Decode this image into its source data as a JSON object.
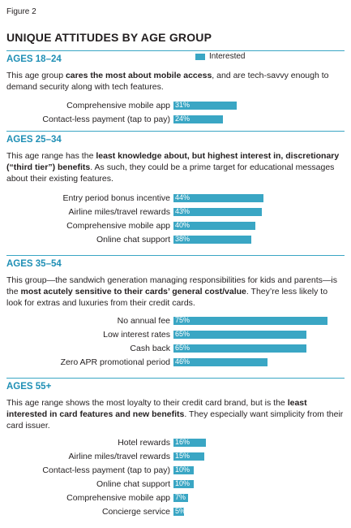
{
  "figure_label": "Figure 2",
  "title": "UNIQUE ATTITUDES BY AGE GROUP",
  "legend": {
    "label": "Interested",
    "color": "#3aa6c4"
  },
  "colors": {
    "accent": "#3aa6c4",
    "header": "#1f8fb5"
  },
  "sections": [
    {
      "header": "AGES 18–24",
      "description": [
        {
          "t": "This age group ",
          "b": false
        },
        {
          "t": "cares the most about mobile access",
          "b": true
        },
        {
          "t": ", and are tech-savvy enough to demand security along with tech features.",
          "b": false
        }
      ]
    },
    {
      "header": "AGES 25–34",
      "description": [
        {
          "t": "This age range has the ",
          "b": false
        },
        {
          "t": "least knowledge about, but highest interest in, discretionary (“third tier”) benefits",
          "b": true
        },
        {
          "t": ". As such, they could be a prime target for educational messages about their existing features.",
          "b": false
        }
      ]
    },
    {
      "header": "AGES 35–54",
      "description": [
        {
          "t": "This group—the sandwich generation managing responsibilities for kids and parents—is the ",
          "b": false
        },
        {
          "t": "most acutely sensitive to their cards’ general cost/value",
          "b": true
        },
        {
          "t": ". They’re less likely to look for extras and luxuries from their credit cards.",
          "b": false
        }
      ]
    },
    {
      "header": "AGES 55+",
      "description": [
        {
          "t": "This age range shows the most loyalty to their credit card brand, but is the ",
          "b": false
        },
        {
          "t": "least interested in card features and new benefits",
          "b": true
        },
        {
          "t": ". They especially want simplicity from their card issuer.",
          "b": false
        }
      ]
    }
  ],
  "chart_data": [
    {
      "type": "bar",
      "orientation": "horizontal",
      "title": "AGES 18–24",
      "categories": [
        "Comprehensive mobile app",
        "Contact-less payment (tap to pay)"
      ],
      "series": [
        {
          "name": "Interested",
          "values": [
            31,
            24
          ]
        }
      ],
      "value_labels": [
        "31%",
        "24%"
      ],
      "xlim": [
        0,
        100
      ]
    },
    {
      "type": "bar",
      "orientation": "horizontal",
      "title": "AGES 25–34",
      "categories": [
        "Entry period bonus incentive",
        "Airline miles/travel rewards",
        "Comprehensive mobile app",
        "Online chat support"
      ],
      "series": [
        {
          "name": "Interested",
          "values": [
            44,
            43,
            40,
            38
          ]
        }
      ],
      "value_labels": [
        "44%",
        "43%",
        "40%",
        "38%"
      ],
      "xlim": [
        0,
        100
      ]
    },
    {
      "type": "bar",
      "orientation": "horizontal",
      "title": "AGES 35–54",
      "categories": [
        "No annual fee",
        "Low interest rates",
        "Cash back",
        "Zero APR promotional period"
      ],
      "series": [
        {
          "name": "Interested",
          "values": [
            75,
            65,
            65,
            46
          ]
        }
      ],
      "value_labels": [
        "75%",
        "65%",
        "65%",
        "46%"
      ],
      "xlim": [
        0,
        100
      ]
    },
    {
      "type": "bar",
      "orientation": "horizontal",
      "title": "AGES 55+",
      "categories": [
        "Hotel rewards",
        "Airline miles/travel rewards",
        "Contact-less payment (tap to pay)",
        "Online chat support",
        "Comprehensive mobile app",
        "Concierge service"
      ],
      "series": [
        {
          "name": "Interested",
          "values": [
            16,
            15,
            10,
            10,
            7,
            5
          ]
        }
      ],
      "value_labels": [
        "16%",
        "15%",
        "10%",
        "10%",
        "7%",
        "5%"
      ],
      "xlim": [
        0,
        100
      ]
    }
  ]
}
